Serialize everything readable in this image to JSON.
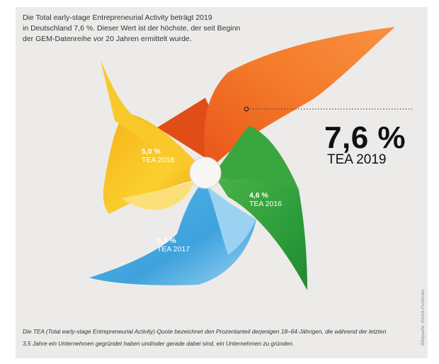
{
  "intro": {
    "lines": [
      "Die Total early-stage Entrepreneurial Activity beträgt 2019",
      "in Deutschland 7,6 %. Dieser Wert ist der höchste, der seit Beginn",
      "der GEM-Datenreihe vor 20 Jahren ermittelt wurde."
    ]
  },
  "highlight": {
    "value_label": "7,6 %",
    "year_label": "TEA 2019"
  },
  "footnote": {
    "lines": [
      "Die TEA (Total early-stage Entrepreneurial Activity)-Quote bezeichnet den Prozentanteil derjenigen 18–64-Jährigen, die während der letzten",
      "3,5 Jahre ein Unternehmen gegründet haben und/oder gerade dabei sind, ein Unternehmen zu gründen."
    ]
  },
  "credit": "Bildquelle: iStock-Pushman",
  "colors": {
    "orange": "#f47a2a",
    "yellow": "#f8c21c",
    "green": "#2e9e3c",
    "blue": "#45a8e0",
    "background": "#ecebe9"
  },
  "chart_data": {
    "type": "pie",
    "unit": "%",
    "categories": [
      "TEA 2019",
      "TEA 2018",
      "TEA 2017",
      "TEA 2016"
    ],
    "values": [
      7.6,
      5.0,
      5.3,
      4.6
    ],
    "value_labels": [
      "7,6 %",
      "5,0 %",
      "5,3 %",
      "4,6 %"
    ],
    "colors": [
      "#f47a2a",
      "#f8c21c",
      "#45a8e0",
      "#2e9e3c"
    ]
  }
}
